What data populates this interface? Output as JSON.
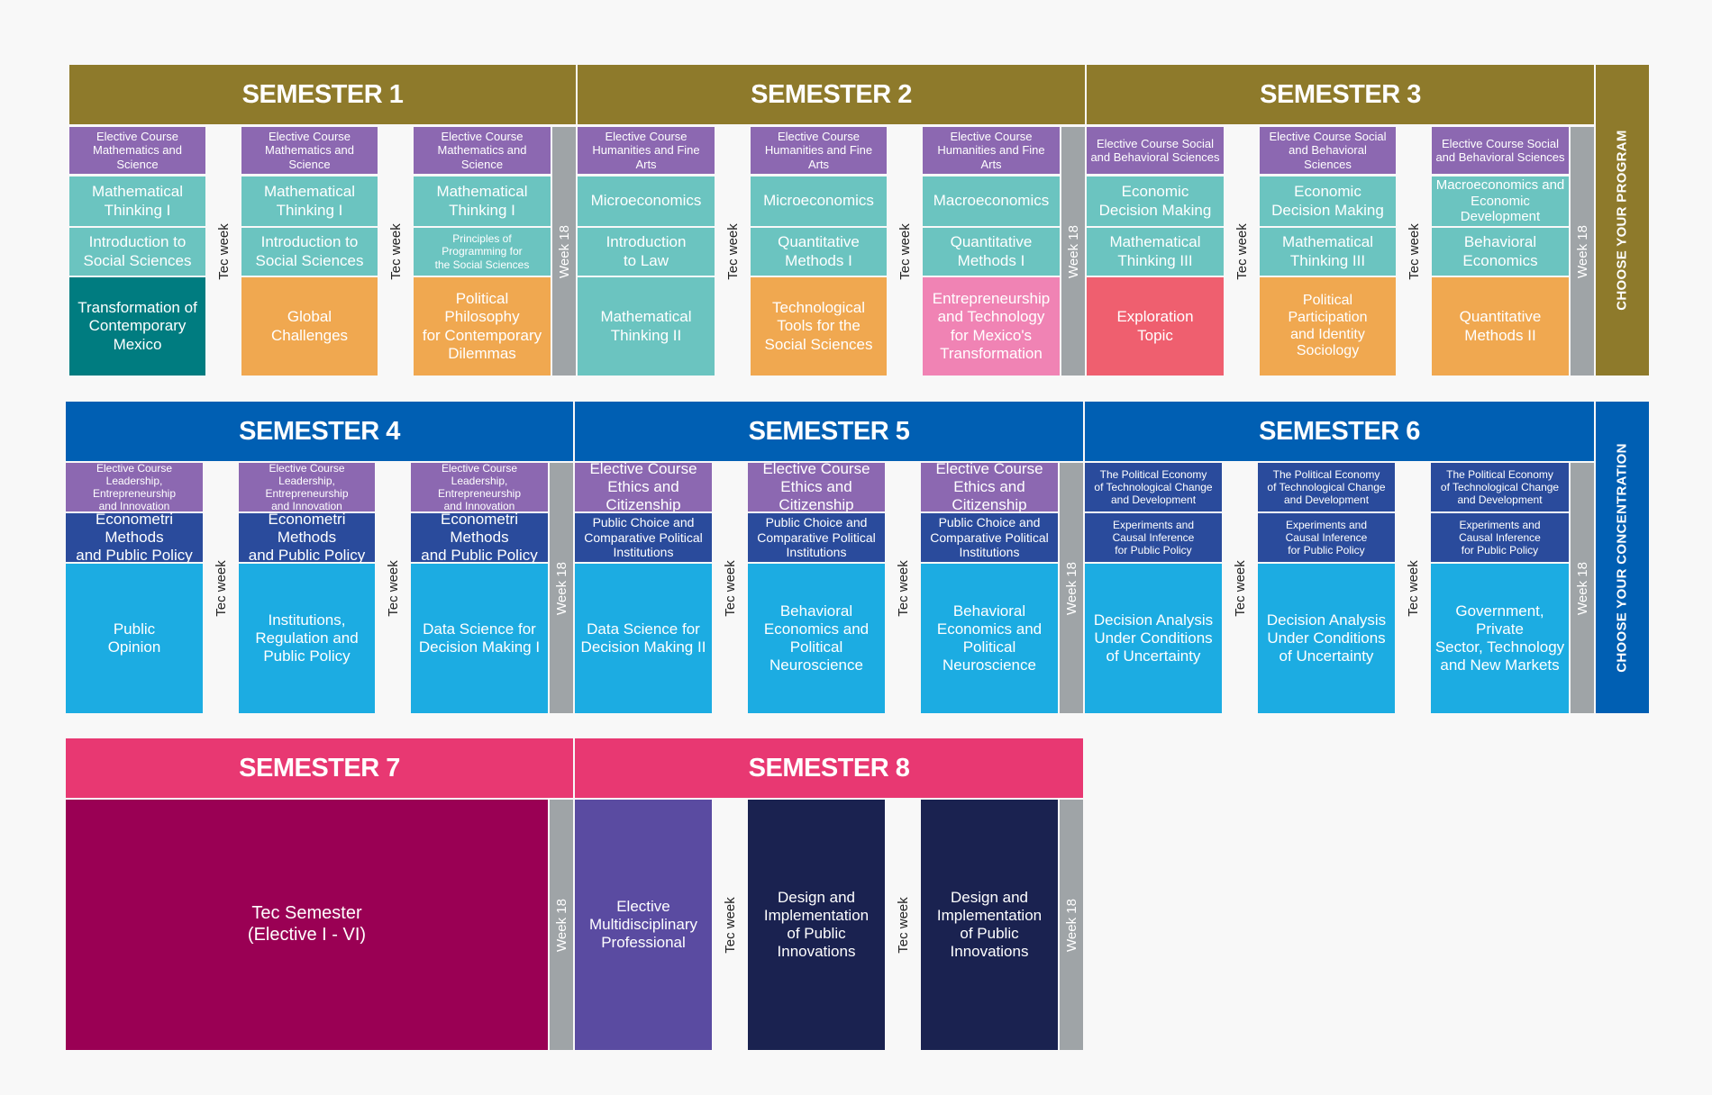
{
  "rows": [
    {
      "semesters": [
        {
          "title": "SEMESTER 1",
          "columns": [
            [
              "Elective Course\nMathematics and Science",
              "Mathematical\nThinking I",
              "Introduction to\nSocial Sciences",
              "Transformation of\nContemporary\nMexico"
            ],
            [
              "Elective Course\nMathematics and Science",
              "Mathematical\nThinking I",
              "Introduction to\nSocial Sciences",
              "Global\nChallenges"
            ],
            [
              "Elective Course\nMathematics and Science",
              "Mathematical\nThinking I",
              "Principles of\nProgramming for\nthe Social Sciences",
              "Political Philosophy\nfor Contemporary\nDilemmas"
            ]
          ]
        },
        {
          "title": "SEMESTER 2",
          "columns": [
            [
              "Elective Course\nHumanities and Fine Arts",
              "Microeconomics",
              "Introduction\nto Law",
              "Mathematical\nThinking II"
            ],
            [
              "Elective Course\nHumanities and Fine Arts",
              "Microeconomics",
              "Quantitative\nMethods I",
              "Technological\nTools for the\nSocial Sciences"
            ],
            [
              "Elective Course\nHumanities and Fine Arts",
              "Macroeconomics",
              "Quantitative\nMethods I",
              "Entrepreneurship\nand Technology\nfor Mexico's\nTransformation"
            ]
          ]
        },
        {
          "title": "SEMESTER 3",
          "columns": [
            [
              "Elective Course Social\nand Behavioral Sciences",
              "Economic\nDecision Making",
              "Mathematical\nThinking III",
              "Exploration\nTopic"
            ],
            [
              "Elective Course Social\nand Behavioral Sciences",
              "Economic\nDecision Making",
              "Mathematical\nThinking III",
              "Political Participation\nand Identity\nSociology"
            ],
            [
              "Elective Course Social\nand Behavioral Sciences",
              "Macroeconomics and\nEconomic Development",
              "Behavioral\nEconomics",
              "Quantitative\nMethods II"
            ]
          ]
        }
      ],
      "band": "CHOOSE YOUR PROGRAM"
    },
    {
      "semesters": [
        {
          "title": "SEMESTER 4",
          "columns": [
            [
              "Elective Course Leadership,\nEntrepreneurship\nand Innovation",
              "Econometri Methods\nand Public Policy",
              "Public\nOpinion"
            ],
            [
              "Elective Course Leadership,\nEntrepreneurship\nand Innovation",
              "Econometri Methods\nand Public Policy",
              "Institutions,\nRegulation and\nPublic Policy"
            ],
            [
              "Elective Course Leadership,\nEntrepreneurship\nand Innovation",
              "Econometri Methods\nand Public Policy",
              "Data Science for\nDecision Making I"
            ]
          ]
        },
        {
          "title": "SEMESTER 5",
          "columns": [
            [
              "Elective Course\nEthics and Citizenship",
              "Public Choice and\nComparative Political\nInstitutions",
              "Data Science for\nDecision Making II"
            ],
            [
              "Elective Course\nEthics and Citizenship",
              "Public Choice and\nComparative Political\nInstitutions",
              "Behavioral\nEconomics and\nPolitical Neuroscience"
            ],
            [
              "Elective Course\nEthics and Citizenship",
              "Public Choice and\nComparative Political\nInstitutions",
              "Behavioral\nEconomics and\nPolitical Neuroscience"
            ]
          ]
        },
        {
          "title": "SEMESTER 6",
          "columns": [
            [
              "The Political Economy\nof Technological Change\nand Development",
              "Experiments and\nCausal Inference\nfor Public Policy",
              "Decision Analysis\nUnder Conditions\nof Uncertainty"
            ],
            [
              "The Political Economy\nof Technological Change\nand Development",
              "Experiments and\nCausal Inference\nfor Public Policy",
              "Decision Analysis\nUnder Conditions\nof Uncertainty"
            ],
            [
              "The Political Economy\nof Technological Change\nand Development",
              "Experiments and\nCausal Inference\nfor Public Policy",
              "Government, Private\nSector, Technology\nand New Markets"
            ]
          ]
        }
      ],
      "band": "CHOOSE YOUR CONCENTRATION"
    },
    {
      "semesters": [
        {
          "title": "SEMESTER 7",
          "block": "Tec Semester\n(Elective I - VI)"
        },
        {
          "title": "SEMESTER 8",
          "columns": [
            [
              "Elective\nMultidisciplinary\nProfessional"
            ],
            [
              "Design and\nImplementation\nof Public Innovations"
            ],
            [
              "Design and\nImplementation\nof Public Innovations"
            ]
          ]
        }
      ]
    }
  ],
  "labels": {
    "tec_week": "Tec week",
    "week18": "Week 18"
  },
  "colors": {
    "row1_header": "#8e7a2b",
    "row2_header": "#005fb3",
    "row3_header": "#e83872"
  }
}
